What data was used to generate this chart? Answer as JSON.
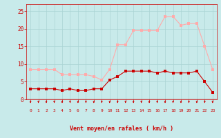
{
  "hours": [
    0,
    1,
    2,
    3,
    4,
    5,
    6,
    7,
    8,
    9,
    10,
    11,
    12,
    13,
    14,
    15,
    16,
    17,
    18,
    19,
    20,
    21,
    22,
    23
  ],
  "wind_avg": [
    3,
    3,
    3,
    3,
    2.5,
    3,
    2.5,
    2.5,
    3,
    3,
    5.5,
    6.5,
    8,
    8,
    8,
    8,
    7.5,
    8,
    7.5,
    7.5,
    7.5,
    8,
    5,
    2
  ],
  "wind_gust": [
    8.5,
    8.5,
    8.5,
    8.5,
    7,
    7,
    7,
    7,
    6.5,
    5.5,
    8.5,
    15.5,
    15.5,
    19.5,
    19.5,
    19.5,
    19.5,
    23.5,
    23.5,
    21,
    21.5,
    21.5,
    15,
    8.5
  ],
  "ylabel_values": [
    0,
    5,
    10,
    15,
    20,
    25
  ],
  "xlim": [
    -0.5,
    23.5
  ],
  "ylim": [
    0,
    27
  ],
  "bg_color": "#c8eaea",
  "grid_color": "#aad4d4",
  "avg_color": "#cc0000",
  "gust_color": "#ffaaaa",
  "xlabel": "Vent moyen/en rafales ( km/h )",
  "tick_color": "#cc0000",
  "marker_size": 2.5
}
